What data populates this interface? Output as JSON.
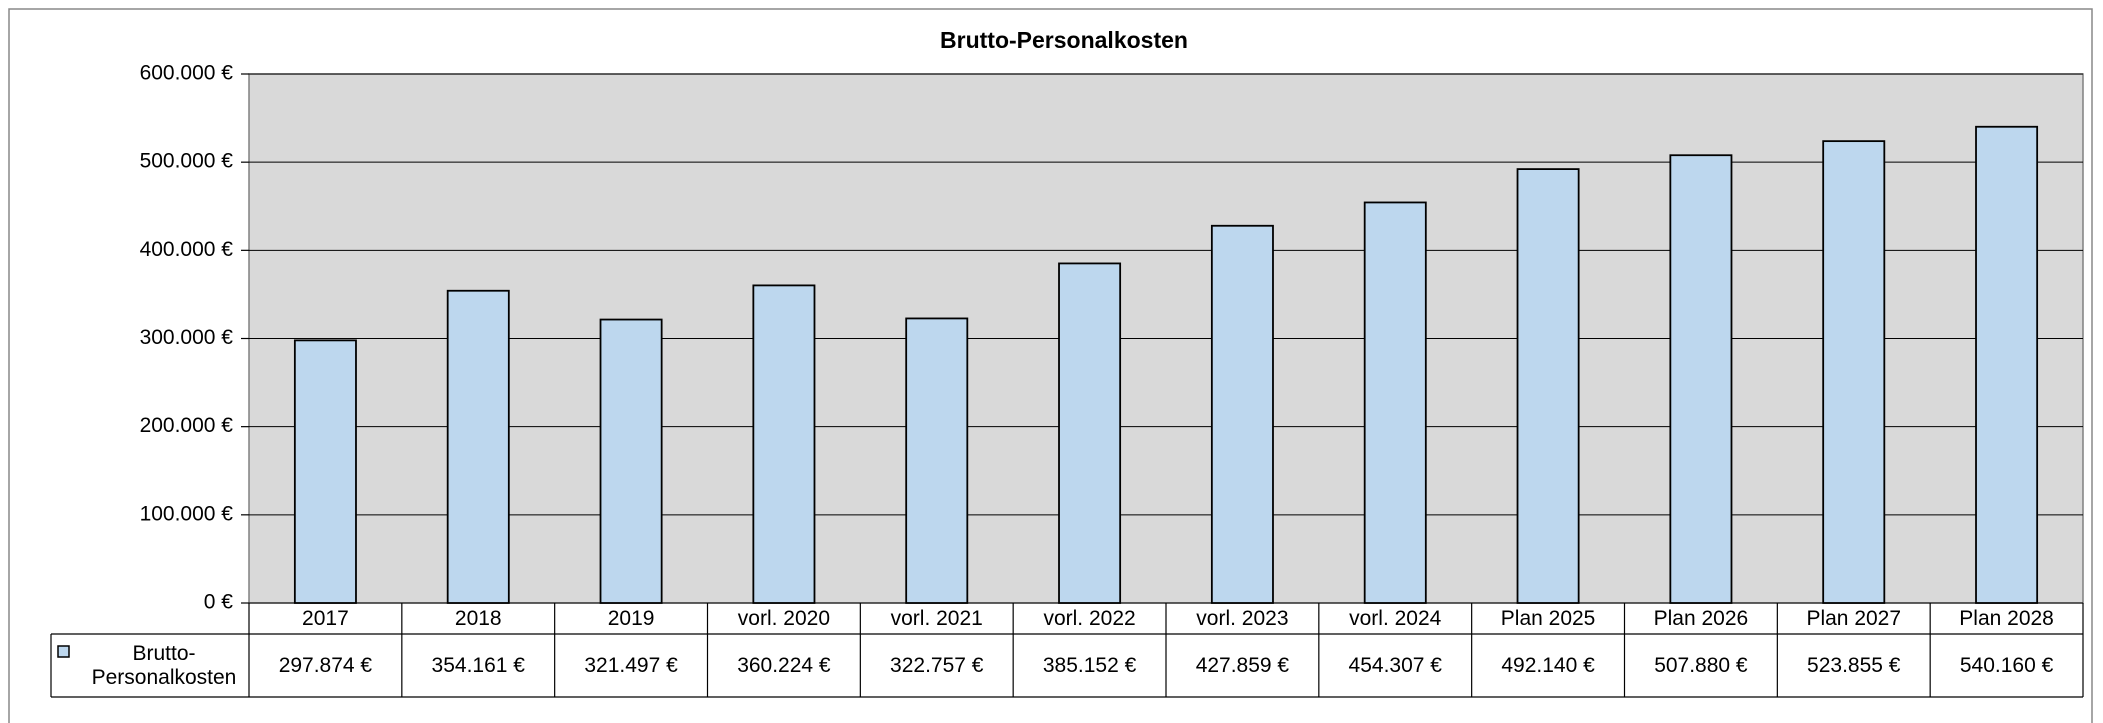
{
  "chart_data": {
    "type": "bar",
    "title": "Brutto-Personalkosten",
    "categories": [
      "2017",
      "2018",
      "2019",
      "vorl. 2020",
      "vorl. 2021",
      "vorl. 2022",
      "vorl. 2023",
      "vorl. 2024",
      "Plan 2025",
      "Plan 2026",
      "Plan 2027",
      "Plan 2028"
    ],
    "series": [
      {
        "name": "Brutto-Personalkosten",
        "color": "#bdd7ee",
        "values": [
          297874,
          354161,
          321497,
          360224,
          322757,
          385152,
          427859,
          454307,
          492140,
          507880,
          523855,
          540160
        ],
        "value_labels": [
          "297.874 €",
          "354.161 €",
          "321.497 €",
          "360.224 €",
          "322.757 €",
          "385.152 €",
          "427.859 €",
          "454.307 €",
          "492.140 €",
          "507.880 €",
          "523.855 €",
          "540.160 €"
        ]
      }
    ],
    "ylim": [
      0,
      600000
    ],
    "yticks": [
      {
        "value": 0,
        "label": "0 €"
      },
      {
        "value": 100000,
        "label": "100.000 €"
      },
      {
        "value": 200000,
        "label": "200.000 €"
      },
      {
        "value": 300000,
        "label": "300.000 €"
      },
      {
        "value": 400000,
        "label": "400.000 €"
      },
      {
        "value": 500000,
        "label": "500.000 €"
      },
      {
        "value": 600000,
        "label": "600.000 €"
      }
    ],
    "grid": true,
    "plot_background": "#d9d9d9"
  }
}
